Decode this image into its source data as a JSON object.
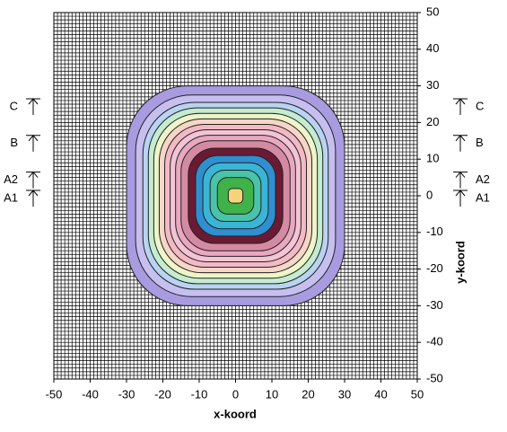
{
  "chart_data": {
    "type": "contour",
    "x_label": "x-koord",
    "y_label": "y-koord",
    "xlim": [
      -50,
      50
    ],
    "ylim": [
      -50,
      50
    ],
    "xticks": [
      -50,
      -40,
      -30,
      -20,
      -10,
      0,
      10,
      20,
      30,
      40,
      50
    ],
    "yticks": [
      -50,
      -40,
      -30,
      -20,
      -10,
      0,
      10,
      20,
      30,
      40,
      50
    ],
    "grid": true,
    "grid_step": 1,
    "contours": [
      {
        "size": 30,
        "color": "#a99be0"
      },
      {
        "size": 27.5,
        "color": "#c6bff0"
      },
      {
        "size": 25.5,
        "color": "#b9d3f2"
      },
      {
        "size": 24,
        "color": "#c4ecd0"
      },
      {
        "size": 22.5,
        "color": "#eef5c8"
      },
      {
        "size": 21,
        "color": "#f7d6c8"
      },
      {
        "size": 19.5,
        "color": "#f3b9c4"
      },
      {
        "size": 18,
        "color": "#f3c3d6"
      },
      {
        "size": 16.5,
        "color": "#e9a8bf"
      },
      {
        "size": 15,
        "color": "#d58aa4"
      },
      {
        "size": 13,
        "color": "#6b1a34"
      },
      {
        "size": 11,
        "color": "#2f8fd0"
      },
      {
        "size": 9,
        "color": "#3bb5d6"
      },
      {
        "size": 7,
        "color": "#49c3a9"
      },
      {
        "size": 5,
        "color": "#3fb24a"
      },
      {
        "size": 2,
        "color": "#f4d47a"
      }
    ],
    "markers": [
      {
        "label": "C",
        "y": 25
      },
      {
        "label": "B",
        "y": 15
      },
      {
        "label": "A2",
        "y": 5
      },
      {
        "label": "A1",
        "y": 0
      }
    ]
  }
}
